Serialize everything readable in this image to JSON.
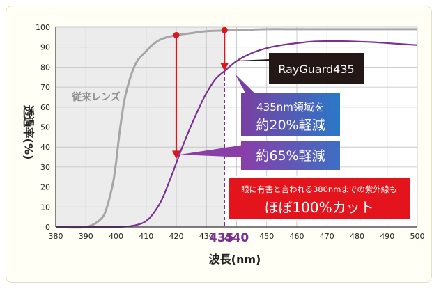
{
  "chart_data": {
    "type": "line",
    "title": "",
    "xlabel": "波長(nm)",
    "ylabel": "透過率(%)",
    "xlim": [
      380,
      500
    ],
    "ylim": [
      0,
      100
    ],
    "x_ticks": [
      380,
      390,
      400,
      410,
      420,
      430,
      440,
      450,
      460,
      470,
      480,
      490,
      500
    ],
    "y_ticks": [
      0,
      10,
      20,
      30,
      40,
      50,
      60,
      70,
      80,
      90,
      100
    ],
    "highlight_ticks": [
      {
        "label": "435",
        "value": 435
      },
      {
        "label": "440",
        "value": 440
      }
    ],
    "marker_line_x": 436,
    "grid": true,
    "series": [
      {
        "name": "従来レンズ",
        "color": "#a6a6a6",
        "x": [
          380,
          390,
          395,
          397,
          399,
          400,
          401,
          402,
          403,
          405,
          407,
          410,
          412,
          415,
          420,
          425,
          430,
          440,
          450,
          460,
          470,
          480,
          490,
          500
        ],
        "y": [
          0,
          0,
          4,
          10,
          22,
          32,
          45,
          56,
          65,
          76,
          83,
          88,
          91,
          94,
          96,
          97,
          98,
          98.5,
          99,
          99,
          99,
          99,
          99,
          99
        ]
      },
      {
        "name": "RayGuard435",
        "color": "#7a2f91",
        "x": [
          380,
          400,
          405,
          408,
          410,
          412,
          415,
          418,
          420,
          422,
          425,
          428,
          430,
          433,
          436,
          440,
          445,
          450,
          455,
          460,
          465,
          470,
          475,
          480,
          485,
          490,
          495,
          500
        ],
        "y": [
          0,
          0,
          0.5,
          1.5,
          3,
          6,
          13,
          24,
          32,
          40,
          51,
          61,
          67,
          74,
          78,
          83,
          87,
          89.5,
          91,
          92,
          92.8,
          93,
          93,
          92.8,
          92.5,
          92,
          91.5,
          91
        ]
      }
    ],
    "annotations": {
      "conventional_lens": "従来レンズ",
      "rayguard_label": "RayGuard435",
      "box_435nm_line1": "435nm領域を",
      "box_435nm_line2": "約20%軽減",
      "box_65": "約65%軽減",
      "box_red_line1": "眼に有害と言われる380nmまでの紫外線も",
      "box_red_line2": "ほぼ100%カット"
    },
    "arrows": [
      {
        "x": 420,
        "from": 96,
        "to": 34
      },
      {
        "x": 436,
        "from": 98.5,
        "to": 78
      }
    ]
  },
  "colors": {
    "conventional": "#a6a6a6",
    "rayguard": "#7a2f91",
    "arrow": "#d7191f",
    "blue_box": "#2c6fc0",
    "purple_box": "#7a3fa3",
    "red_box": "#e3141c",
    "highlight_tick": "#7a2f91",
    "shade": "#ececec",
    "grid": "#bfbfbf"
  }
}
